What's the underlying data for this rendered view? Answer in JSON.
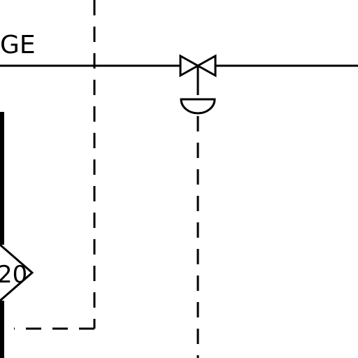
{
  "diagram": {
    "line_label": "GE",
    "instrument_tag": "20",
    "colors": {
      "background": "#ffffff",
      "ink": "#000000"
    }
  }
}
